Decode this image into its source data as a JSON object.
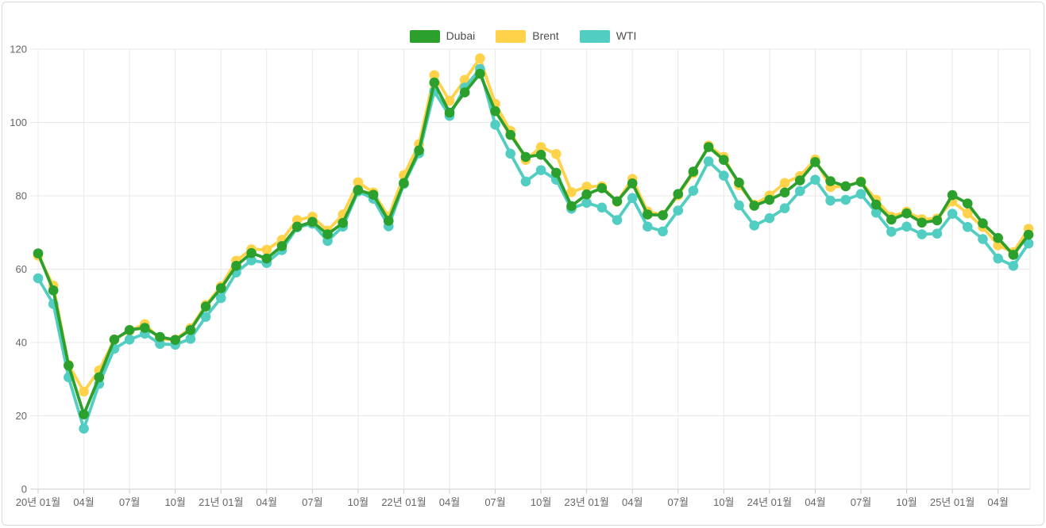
{
  "chart_data": {
    "type": "line",
    "title": "",
    "xlabel": "",
    "ylabel": "",
    "ylim": [
      0,
      120
    ],
    "y_ticks": [
      0,
      20,
      40,
      60,
      80,
      100,
      120
    ],
    "grid": true,
    "legend_position": "top",
    "x_tick_interval": 3,
    "x_tick_labels": [
      "20년 01월",
      "04월",
      "07월",
      "10월",
      "21년 01월",
      "04월",
      "07월",
      "10월",
      "22년 01월",
      "04월",
      "07월",
      "10월",
      "23년 01월",
      "04월",
      "07월",
      "10월",
      "24년 01월",
      "04월",
      "07월",
      "10월",
      "25년 01월",
      "04월"
    ],
    "x": [
      "2020-01",
      "2020-02",
      "2020-03",
      "2020-04",
      "2020-05",
      "2020-06",
      "2020-07",
      "2020-08",
      "2020-09",
      "2020-10",
      "2020-11",
      "2020-12",
      "2021-01",
      "2021-02",
      "2021-03",
      "2021-04",
      "2021-05",
      "2021-06",
      "2021-07",
      "2021-08",
      "2021-09",
      "2021-10",
      "2021-11",
      "2021-12",
      "2022-01",
      "2022-02",
      "2022-03",
      "2022-04",
      "2022-05",
      "2022-06",
      "2022-07",
      "2022-08",
      "2022-09",
      "2022-10",
      "2022-11",
      "2022-12",
      "2023-01",
      "2023-02",
      "2023-03",
      "2023-04",
      "2023-05",
      "2023-06",
      "2023-07",
      "2023-08",
      "2023-09",
      "2023-10",
      "2023-11",
      "2023-12",
      "2024-01",
      "2024-02",
      "2024-03",
      "2024-04",
      "2024-05",
      "2024-06",
      "2024-07",
      "2024-08",
      "2024-09",
      "2024-10",
      "2024-11",
      "2024-12",
      "2025-01",
      "2025-02",
      "2025-03",
      "2025-04",
      "2025-05",
      "2025-06"
    ],
    "series": [
      {
        "name": "Dubai",
        "color": "#2ca02c",
        "values": [
          64.3,
          54.2,
          33.7,
          20.4,
          30.5,
          40.8,
          43.4,
          44.0,
          41.5,
          40.7,
          43.4,
          49.8,
          54.8,
          60.9,
          64.4,
          62.9,
          66.3,
          71.6,
          72.9,
          69.5,
          72.6,
          81.6,
          80.3,
          73.2,
          83.5,
          92.4,
          110.9,
          102.7,
          108.2,
          113.3,
          103.1,
          96.6,
          90.6,
          91.2,
          86.3,
          77.2,
          80.4,
          82.1,
          78.5,
          83.4,
          74.9,
          74.7,
          80.5,
          86.6,
          93.3,
          89.8,
          83.6,
          77.3,
          78.9,
          80.9,
          84.2,
          89.2,
          84.0,
          82.6,
          83.8,
          77.6,
          73.5,
          75.2,
          72.7,
          73.3,
          80.2,
          77.9,
          72.5,
          68.5,
          63.9,
          69.4
        ]
      },
      {
        "name": "Brent",
        "color": "#ffd24a",
        "values": [
          63.7,
          55.5,
          33.9,
          26.6,
          32.4,
          40.8,
          43.2,
          45.0,
          40.9,
          40.8,
          43.9,
          50.2,
          55.3,
          62.3,
          65.4,
          65.3,
          68.0,
          73.4,
          74.3,
          70.5,
          74.9,
          83.7,
          80.9,
          74.3,
          85.6,
          94.1,
          112.9,
          105.9,
          111.6,
          117.5,
          105.1,
          97.7,
          89.8,
          93.3,
          91.4,
          81.0,
          82.5,
          82.6,
          78.4,
          84.6,
          75.7,
          74.8,
          80.1,
          86.2,
          93.7,
          90.6,
          82.9,
          77.6,
          80.1,
          83.5,
          85.4,
          89.9,
          82.4,
          82.6,
          83.9,
          78.9,
          74.3,
          75.7,
          73.6,
          73.8,
          78.5,
          75.2,
          71.5,
          66.5,
          64.6,
          71.0
        ]
      },
      {
        "name": "WTI",
        "color": "#52cdc2",
        "values": [
          57.5,
          50.5,
          30.5,
          16.5,
          28.7,
          38.3,
          40.8,
          42.4,
          39.6,
          39.4,
          41.0,
          47.0,
          52.1,
          59.1,
          62.4,
          61.7,
          65.2,
          71.4,
          72.4,
          67.7,
          71.6,
          81.2,
          79.2,
          71.7,
          83.2,
          91.6,
          108.5,
          101.8,
          109.5,
          114.6,
          99.4,
          91.5,
          83.9,
          87.0,
          84.4,
          76.5,
          78.1,
          76.8,
          73.4,
          79.4,
          71.6,
          70.3,
          76.0,
          81.4,
          89.4,
          85.5,
          77.4,
          71.9,
          73.9,
          76.6,
          81.3,
          84.4,
          78.7,
          78.9,
          80.5,
          75.4,
          70.2,
          71.6,
          69.5,
          69.7,
          75.1,
          71.5,
          68.2,
          62.9,
          60.9,
          67.0
        ]
      }
    ],
    "colors": {
      "grid_line": "#e9e9e9",
      "axis_line": "#cccccc",
      "tick_text": "#666666",
      "legend_text": "#4d4d4d",
      "background": "#ffffff",
      "card_border": "#d9d9d9"
    }
  }
}
